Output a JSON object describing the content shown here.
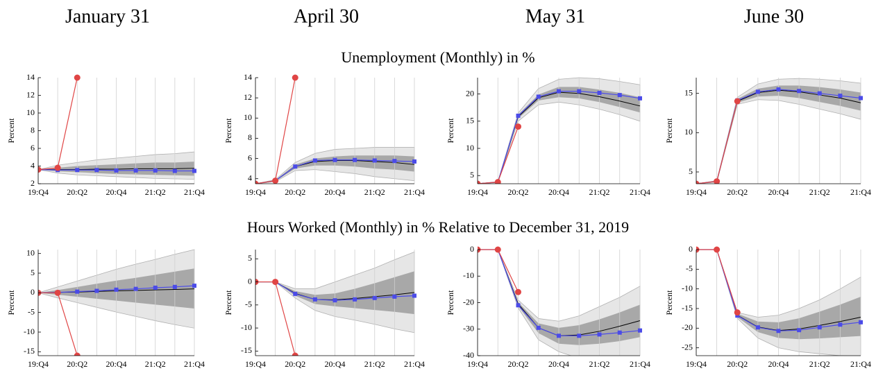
{
  "columns": [
    "January 31",
    "April 30",
    "May 31",
    "June 30"
  ],
  "rows": [
    "Unemployment (Monthly) in %",
    "Hours Worked (Monthly) in % Relative to December 31, 2019"
  ],
  "chart_data": [
    {
      "type": "fan",
      "ylabel": "Percent",
      "categories": [
        "19:Q4",
        null,
        "20:Q2",
        null,
        "20:Q4",
        null,
        "21:Q2",
        null,
        "21:Q4"
      ],
      "ylim": [
        2,
        14
      ],
      "yticks": [
        2,
        4,
        6,
        8,
        10,
        12,
        14
      ],
      "bands": [
        {
          "color": "#e6e6e6",
          "lower": [
            3.6,
            3.2,
            3.0,
            2.9,
            2.8,
            2.7,
            2.6,
            2.55,
            2.5
          ],
          "upper": [
            3.6,
            4.1,
            4.4,
            4.7,
            4.9,
            5.1,
            5.3,
            5.4,
            5.6
          ]
        },
        {
          "color": "#a8a8a8",
          "lower": [
            3.6,
            3.4,
            3.3,
            3.2,
            3.1,
            3.05,
            3.0,
            2.95,
            2.9
          ],
          "upper": [
            3.6,
            3.8,
            4.0,
            4.1,
            4.2,
            4.3,
            4.4,
            4.4,
            4.5
          ]
        }
      ],
      "series": [
        {
          "color": "#000000",
          "values": [
            3.6,
            3.6,
            3.6,
            3.65,
            3.65,
            3.7,
            3.7,
            3.7,
            3.75
          ]
        },
        {
          "color": "#4b4be8",
          "marker": "square",
          "values": [
            3.6,
            3.55,
            3.55,
            3.55,
            3.5,
            3.5,
            3.5,
            3.45,
            3.45
          ]
        },
        {
          "color": "#e04545",
          "marker": "circle",
          "values": [
            3.6,
            3.8,
            14,
            null,
            null,
            null,
            null,
            null,
            null
          ]
        }
      ]
    },
    {
      "type": "fan",
      "ylabel": "Percent",
      "categories": [
        "19:Q4",
        null,
        "20:Q2",
        null,
        "20:Q4",
        null,
        "21:Q2",
        null,
        "21:Q4"
      ],
      "ylim": [
        3.5,
        14
      ],
      "yticks": [
        4,
        6,
        8,
        10,
        12,
        14
      ],
      "bands": [
        {
          "color": "#e6e6e6",
          "lower": [
            3.5,
            3.7,
            4.8,
            4.9,
            4.7,
            4.5,
            4.2,
            4.0,
            3.8
          ],
          "upper": [
            3.5,
            3.9,
            5.6,
            6.5,
            6.9,
            7.0,
            7.1,
            7.1,
            7.1
          ]
        },
        {
          "color": "#a8a8a8",
          "lower": [
            3.5,
            3.75,
            5.0,
            5.3,
            5.3,
            5.2,
            5.0,
            4.9,
            4.7
          ],
          "upper": [
            3.5,
            3.85,
            5.4,
            6.0,
            6.2,
            6.3,
            6.3,
            6.3,
            6.2
          ]
        }
      ],
      "series": [
        {
          "color": "#000000",
          "values": [
            3.5,
            3.8,
            5.2,
            5.7,
            5.8,
            5.8,
            5.7,
            5.6,
            5.4
          ]
        },
        {
          "color": "#4b4be8",
          "marker": "square",
          "values": [
            3.5,
            3.8,
            5.2,
            5.8,
            5.85,
            5.85,
            5.8,
            5.75,
            5.7
          ]
        },
        {
          "color": "#e04545",
          "marker": "circle",
          "values": [
            3.5,
            3.8,
            14,
            null,
            null,
            null,
            null,
            null,
            null
          ]
        }
      ]
    },
    {
      "type": "fan",
      "ylabel": "Percent",
      "categories": [
        "19:Q4",
        null,
        "20:Q2",
        null,
        "20:Q4",
        null,
        "21:Q2",
        null,
        "21:Q4"
      ],
      "ylim": [
        3.5,
        23
      ],
      "yticks": [
        5,
        10,
        15,
        20
      ],
      "bands": [
        {
          "color": "#e6e6e6",
          "lower": [
            3.5,
            3.7,
            15,
            18,
            18.5,
            18.0,
            17.2,
            16.2,
            15.0
          ],
          "upper": [
            3.5,
            3.9,
            16.5,
            21,
            22.7,
            23,
            22.8,
            22.3,
            21.7
          ]
        },
        {
          "color": "#a8a8a8",
          "lower": [
            3.5,
            3.75,
            15.5,
            18.8,
            19.4,
            19.2,
            18.5,
            17.6,
            16.6
          ],
          "upper": [
            3.5,
            3.85,
            16.2,
            19.9,
            21.3,
            21.3,
            20.8,
            20.2,
            19.4
          ]
        }
      ],
      "series": [
        {
          "color": "#000000",
          "values": [
            3.5,
            3.8,
            15.8,
            19.3,
            20.3,
            20.1,
            19.5,
            18.7,
            17.8
          ]
        },
        {
          "color": "#4b4be8",
          "marker": "square",
          "values": [
            3.5,
            3.8,
            16,
            19.5,
            20.5,
            20.5,
            20.2,
            19.8,
            19.2
          ]
        },
        {
          "color": "#e04545",
          "marker": "circle",
          "values": [
            3.5,
            3.8,
            14,
            null,
            null,
            null,
            null,
            null,
            null
          ]
        }
      ]
    },
    {
      "type": "fan",
      "ylabel": "Percent",
      "categories": [
        "19:Q4",
        null,
        "20:Q2",
        null,
        "20:Q4",
        null,
        "21:Q2",
        null,
        "21:Q4"
      ],
      "ylim": [
        3.5,
        17
      ],
      "yticks": [
        5,
        10,
        15
      ],
      "bands": [
        {
          "color": "#e6e6e6",
          "lower": [
            3.5,
            3.7,
            13.6,
            14.2,
            14.1,
            13.6,
            13.0,
            12.4,
            11.7
          ],
          "upper": [
            3.5,
            3.9,
            14.5,
            16.2,
            16.8,
            16.9,
            16.8,
            16.6,
            16.3
          ]
        },
        {
          "color": "#a8a8a8",
          "lower": [
            3.5,
            3.75,
            13.8,
            14.6,
            14.7,
            14.4,
            13.9,
            13.4,
            12.8
          ],
          "upper": [
            3.5,
            3.85,
            14.3,
            15.6,
            16.0,
            16.0,
            15.8,
            15.5,
            15.1
          ]
        }
      ],
      "series": [
        {
          "color": "#000000",
          "values": [
            3.5,
            3.8,
            14,
            15.1,
            15.4,
            15.2,
            14.8,
            14.4,
            13.8
          ]
        },
        {
          "color": "#4b4be8",
          "marker": "square",
          "values": [
            3.5,
            3.8,
            14.1,
            15.2,
            15.5,
            15.3,
            15.0,
            14.7,
            14.4
          ]
        },
        {
          "color": "#e04545",
          "marker": "circle",
          "values": [
            3.5,
            3.8,
            14,
            null,
            null,
            null,
            null,
            null,
            null
          ]
        }
      ]
    },
    {
      "type": "fan",
      "ylabel": "Percent",
      "categories": [
        "19:Q4",
        null,
        "20:Q2",
        null,
        "20:Q4",
        null,
        "21:Q2",
        null,
        "21:Q4"
      ],
      "ylim": [
        -16,
        11
      ],
      "yticks": [
        -15,
        -10,
        -5,
        0,
        5,
        10
      ],
      "bands": [
        {
          "color": "#e6e6e6",
          "lower": [
            0,
            -1.3,
            -2.5,
            -3.7,
            -4.9,
            -6.0,
            -7.1,
            -8.1,
            -9.0
          ],
          "upper": [
            0,
            1.5,
            3.0,
            4.5,
            6.0,
            7.3,
            8.5,
            9.8,
            11
          ]
        },
        {
          "color": "#a8a8a8",
          "lower": [
            0,
            -0.5,
            -1,
            -1.5,
            -2.0,
            -2.5,
            -3.0,
            -3.5,
            -4.0
          ],
          "upper": [
            0,
            0.7,
            1.5,
            2.3,
            3.1,
            3.8,
            4.6,
            5.4,
            6.2
          ]
        }
      ],
      "series": [
        {
          "color": "#000000",
          "values": [
            0,
            0.1,
            0.2,
            0.35,
            0.5,
            0.6,
            0.75,
            0.85,
            1.0
          ]
        },
        {
          "color": "#4b4be8",
          "marker": "square",
          "values": [
            0,
            0.1,
            0.3,
            0.5,
            0.8,
            1.0,
            1.3,
            1.5,
            1.8
          ]
        },
        {
          "color": "#e04545",
          "marker": "circle",
          "values": [
            0,
            0,
            -16,
            null,
            null,
            null,
            null,
            null,
            null
          ]
        }
      ]
    },
    {
      "type": "fan",
      "ylabel": "Percent",
      "categories": [
        "19:Q4",
        null,
        "20:Q2",
        null,
        "20:Q4",
        null,
        "21:Q2",
        null,
        "21:Q4"
      ],
      "ylim": [
        -16,
        7
      ],
      "yticks": [
        -15,
        -10,
        -5,
        0,
        5
      ],
      "bands": [
        {
          "color": "#e6e6e6",
          "lower": [
            0,
            0,
            -3.5,
            -6.2,
            -7.5,
            -8.3,
            -9.2,
            -10.2,
            -11
          ],
          "upper": [
            0,
            0,
            -1.5,
            -1.5,
            0,
            1.5,
            3,
            4.8,
            6.5
          ]
        },
        {
          "color": "#a8a8a8",
          "lower": [
            0,
            0,
            -3,
            -4.8,
            -5.3,
            -5.7,
            -6.1,
            -6.5,
            -7
          ],
          "upper": [
            0,
            0,
            -2,
            -2.8,
            -2.5,
            -1.5,
            -0.3,
            1,
            2.3
          ]
        }
      ],
      "series": [
        {
          "color": "#000000",
          "values": [
            0,
            0,
            -2.5,
            -3.8,
            -3.9,
            -3.6,
            -3.2,
            -2.8,
            -2.3
          ]
        },
        {
          "color": "#4b4be8",
          "marker": "square",
          "values": [
            0,
            0,
            -2.6,
            -3.8,
            -4,
            -3.8,
            -3.5,
            -3.2,
            -3.0
          ]
        },
        {
          "color": "#e04545",
          "marker": "circle",
          "values": [
            0,
            0,
            -16,
            null,
            null,
            null,
            null,
            null,
            null
          ]
        }
      ]
    },
    {
      "type": "fan",
      "ylabel": "Percent",
      "categories": [
        "19:Q4",
        null,
        "20:Q2",
        null,
        "20:Q4",
        null,
        "21:Q2",
        null,
        "21:Q4"
      ],
      "ylim": [
        -40,
        0
      ],
      "yticks": [
        -40,
        -30,
        -20,
        -10,
        0
      ],
      "bands": [
        {
          "color": "#e6e6e6",
          "lower": [
            0,
            0,
            -22,
            -34,
            -38.5,
            -41,
            -42,
            -42,
            -41
          ],
          "upper": [
            0,
            0,
            -19,
            -26,
            -27,
            -25,
            -21.5,
            -18,
            -13.8
          ]
        },
        {
          "color": "#a8a8a8",
          "lower": [
            0,
            0,
            -21.3,
            -31.5,
            -35.5,
            -36,
            -35.5,
            -34.5,
            -33
          ],
          "upper": [
            0,
            0,
            -19.8,
            -27.8,
            -29.5,
            -28.5,
            -26.3,
            -23.7,
            -20.8
          ]
        }
      ],
      "series": [
        {
          "color": "#000000",
          "values": [
            0,
            0,
            -20.5,
            -29.5,
            -32.5,
            -32.2,
            -30.8,
            -28.9,
            -26.8
          ]
        },
        {
          "color": "#4b4be8",
          "marker": "square",
          "values": [
            0,
            0,
            -21,
            -29.5,
            -32.5,
            -32.5,
            -32,
            -31.3,
            -30.5
          ]
        },
        {
          "color": "#e04545",
          "marker": "circle",
          "values": [
            0,
            0,
            -16,
            null,
            null,
            null,
            null,
            null,
            null
          ]
        }
      ]
    },
    {
      "type": "fan",
      "ylabel": "Percent",
      "categories": [
        "19:Q4",
        null,
        "20:Q2",
        null,
        "20:Q4",
        null,
        "21:Q2",
        null,
        "21:Q4"
      ],
      "ylim": [
        -27,
        0
      ],
      "yticks": [
        -25,
        -20,
        -15,
        -10,
        -5,
        0
      ],
      "bands": [
        {
          "color": "#e6e6e6",
          "lower": [
            0,
            0,
            -17.5,
            -22.5,
            -25,
            -26,
            -26.5,
            -27,
            -27.2
          ],
          "upper": [
            0,
            0,
            -16,
            -17.2,
            -16.7,
            -15,
            -12.8,
            -10,
            -7
          ]
        },
        {
          "color": "#a8a8a8",
          "lower": [
            0,
            0,
            -17.2,
            -21,
            -22.5,
            -22.8,
            -22.6,
            -22.3,
            -22
          ],
          "upper": [
            0,
            0,
            -16.3,
            -18.3,
            -18.5,
            -17.5,
            -15.8,
            -14,
            -12
          ]
        }
      ],
      "series": [
        {
          "color": "#000000",
          "values": [
            0,
            0,
            -16.7,
            -19.7,
            -20.6,
            -20.2,
            -19.3,
            -18.3,
            -17.2
          ]
        },
        {
          "color": "#4b4be8",
          "marker": "square",
          "values": [
            0,
            0,
            -16.8,
            -19.8,
            -20.7,
            -20.5,
            -19.8,
            -19.1,
            -18.5
          ]
        },
        {
          "color": "#e04545",
          "marker": "circle",
          "values": [
            0,
            0,
            -16,
            null,
            null,
            null,
            null,
            null,
            null
          ]
        }
      ]
    }
  ]
}
